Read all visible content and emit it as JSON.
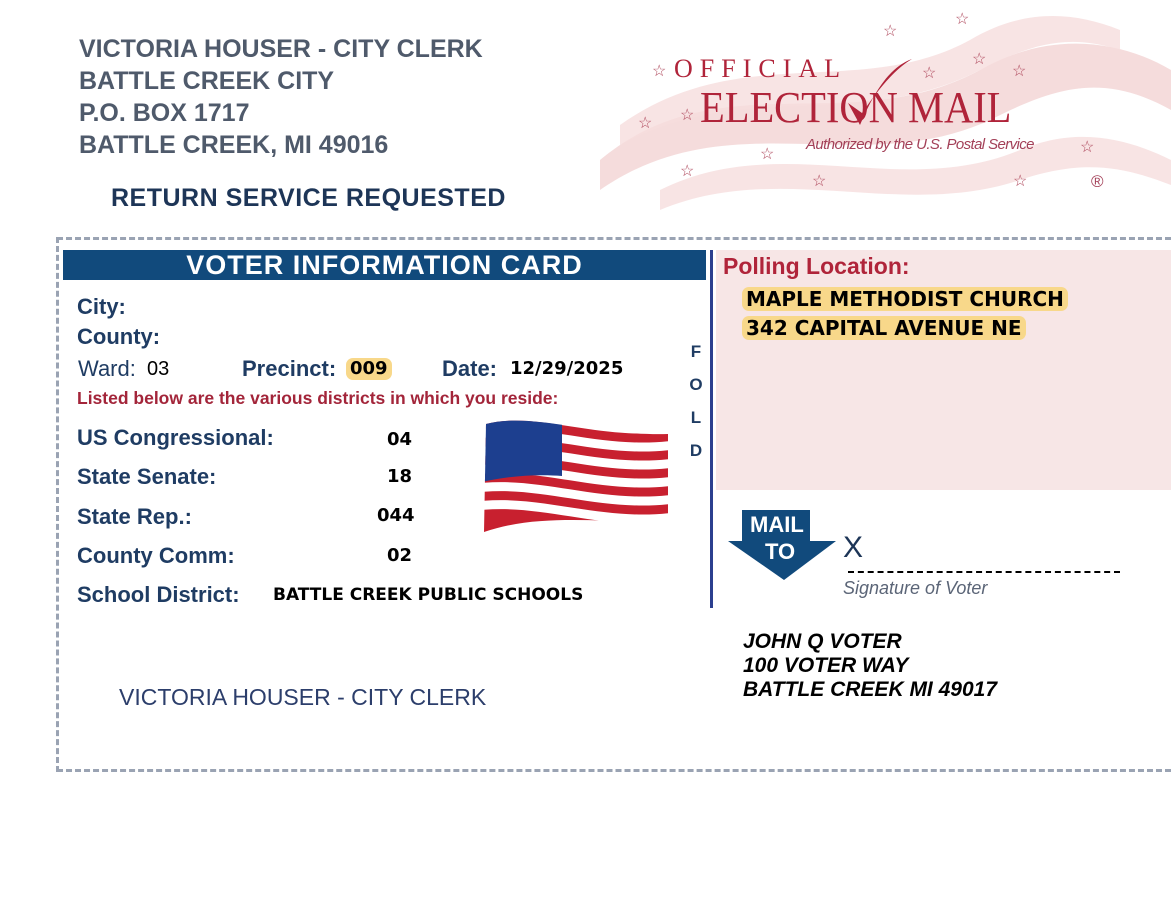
{
  "return_address": {
    "lines": [
      "VICTORIA HOUSER - CITY CLERK",
      "BATTLE CREEK CITY",
      "P.O. BOX 1717",
      "BATTLE CREEK, MI 49016"
    ],
    "service": "RETURN SERVICE REQUESTED"
  },
  "logo": {
    "top": "OFFICIAL",
    "main": "ELECTION MAIL",
    "sub": "Authorized by the U.S. Postal Service",
    "mark": "®",
    "color": "#b0243a"
  },
  "card": {
    "title": "VOTER INFORMATION CARD",
    "city_label": "City:",
    "city_value": "",
    "county_label": "County:",
    "county_value": "",
    "ward_label": "Ward:",
    "ward_value": "03",
    "precinct_label": "Precinct:",
    "precinct_value": "009",
    "date_label": "Date:",
    "date_value": "12/29/2025",
    "districts_intro": "Listed below are the various districts in which you reside:",
    "districts": [
      {
        "label": "US Congressional:",
        "value": "04"
      },
      {
        "label": "State Senate:",
        "value": "18"
      },
      {
        "label": "State Rep.:",
        "value": "044"
      },
      {
        "label": "County Comm:",
        "value": "02"
      },
      {
        "label": "School District:",
        "value": "BATTLE CREEK PUBLIC SCHOOLS"
      }
    ],
    "fold": [
      "F",
      "O",
      "L",
      "D"
    ],
    "clerk_signature": "VICTORIA HOUSER - CITY CLERK"
  },
  "polling": {
    "label": "Polling Location:",
    "name": "MAPLE METHODIST CHURCH",
    "address": "342 CAPITAL AVENUE NE"
  },
  "mail_to": {
    "line1": "MAIL",
    "line2": "TO",
    "x_mark": "X",
    "signature_label": "Signature of Voter"
  },
  "voter": {
    "lines": [
      "JOHN Q VOTER",
      "100 VOTER WAY",
      "BATTLE CREEK MI 49017"
    ]
  }
}
